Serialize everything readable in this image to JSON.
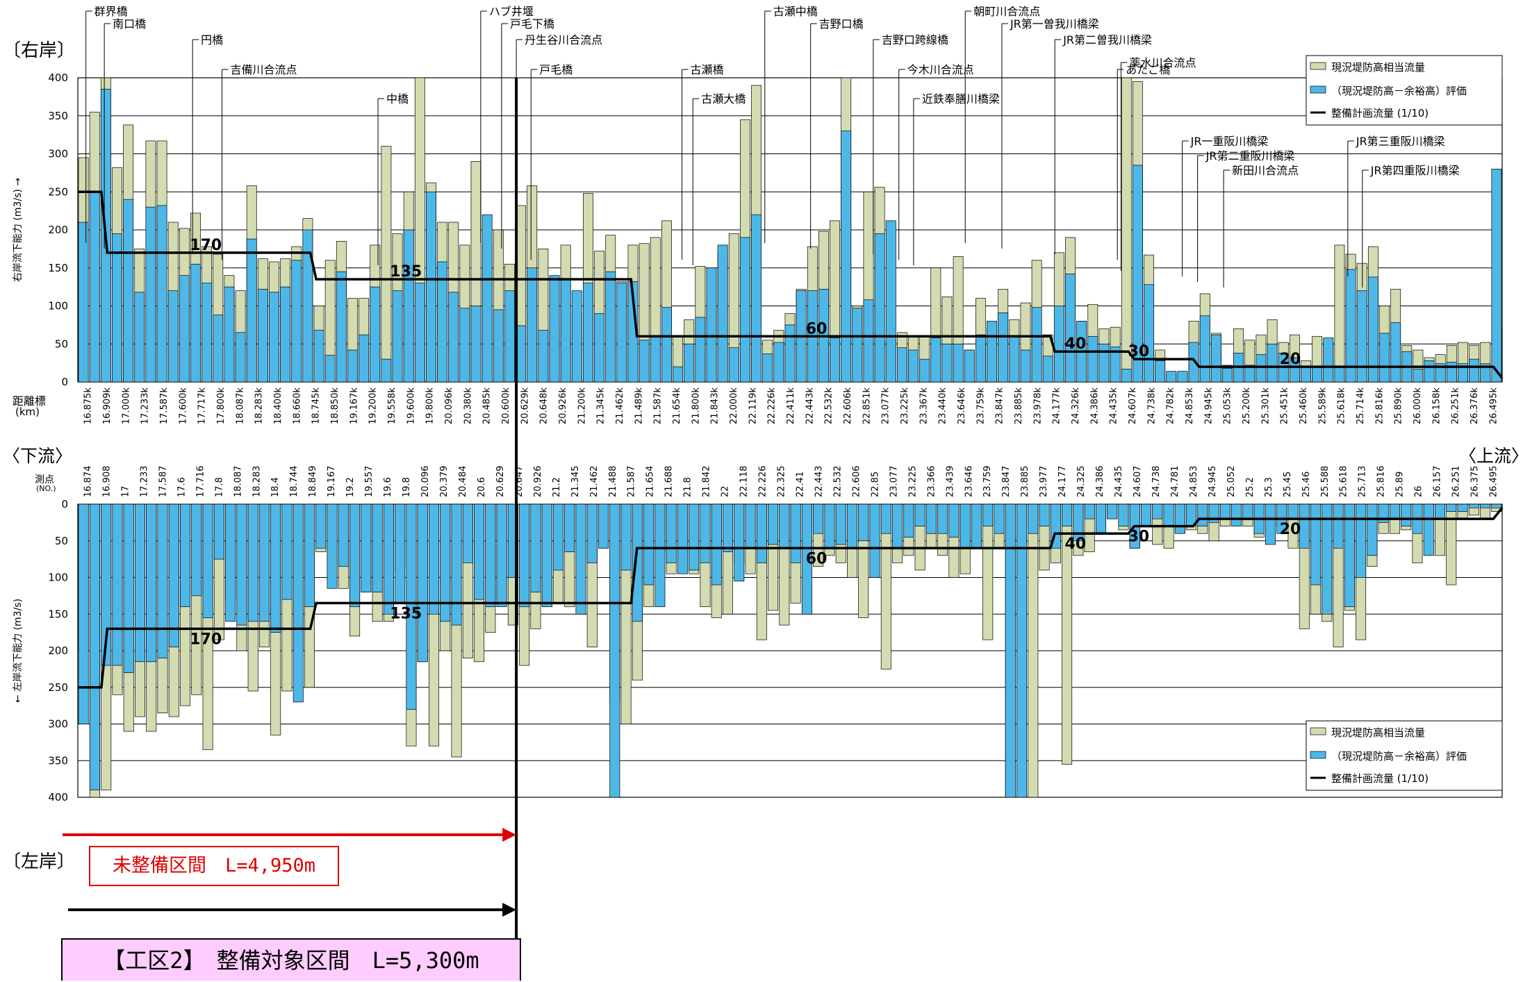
{
  "labels": {
    "right_bank": "〔右岸〕",
    "left_bank": "〔左岸〕",
    "downstream": "〈下流〉",
    "upstream": "〈上流〉",
    "y_label_top": "右岸流下能力 (m3/s) →",
    "y_label_bottom": "← 左岸流下能力 (m3/s)",
    "distance_label": "距離標",
    "distance_unit": "(km)",
    "station_label": "測点",
    "station_unit": "(NO.)",
    "unimproved_section": "未整備区間　L=4,950m",
    "work_section": "【工区2】　整備対象区間　L=5,300m"
  },
  "legend": {
    "item1": "現況堤防高相当流量",
    "item2": "（現況堤防高－余裕高）評価",
    "item3": "整備計画流量 (1/10)"
  },
  "colors": {
    "levee_height_flow": "#d3dcb0",
    "freeboard_eval": "#4db8e8",
    "plan_flow": "#000000",
    "arrow_red": "#e00000",
    "work_box_fill": "#ffccff"
  },
  "landmarks": [
    {
      "name": "群界橋",
      "x": 16.875,
      "tier": 0
    },
    {
      "name": "南口橋",
      "x": 17.0,
      "tier": 1
    },
    {
      "name": "円橋",
      "x": 17.6,
      "tier": 2
    },
    {
      "name": "吉備川合流点",
      "x": 17.8,
      "tier": 3
    },
    {
      "name": "中橋",
      "x": 18.86,
      "tier": 4
    },
    {
      "name": "ハブ井堰",
      "x": 19.558,
      "tier": 0
    },
    {
      "name": "戸毛下橋",
      "x": 19.7,
      "tier": 1
    },
    {
      "name": "丹生谷川合流点",
      "x": 19.8,
      "tier": 2
    },
    {
      "name": "戸毛橋",
      "x": 19.9,
      "tier": 3
    },
    {
      "name": "古瀬橋",
      "x": 20.926,
      "tier": 3
    },
    {
      "name": "古瀬大橋",
      "x": 21.0,
      "tier": 4
    },
    {
      "name": "古瀬中橋",
      "x": 21.489,
      "tier": 0
    },
    {
      "name": "吉野口橋",
      "x": 21.8,
      "tier": 1
    },
    {
      "name": "吉野口跨線橋",
      "x": 22.226,
      "tier": 2
    },
    {
      "name": "今木川合流点",
      "x": 22.4,
      "tier": 3
    },
    {
      "name": "近鉄奉膳川橋梁",
      "x": 22.5,
      "tier": 4
    },
    {
      "name": "朝町川合流点",
      "x": 22.851,
      "tier": 0
    },
    {
      "name": "JR第一曽我川橋梁",
      "x": 23.1,
      "tier": 1
    },
    {
      "name": "JR第二曽我川橋梁",
      "x": 23.46,
      "tier": 2
    },
    {
      "name": "あたご橋",
      "x": 23.885,
      "tier": 3
    },
    {
      "name": "薬水川合流点",
      "x": 23.91,
      "tier": 5
    },
    {
      "name": "JR一重阪川橋梁",
      "x": 24.326,
      "tier": 6
    },
    {
      "name": "JR第二重阪川橋梁",
      "x": 24.43,
      "tier": 7
    },
    {
      "name": "新田川合流点",
      "x": 24.607,
      "tier": 8
    },
    {
      "name": "JR第三重阪川橋梁",
      "x": 25.451,
      "tier": 6
    },
    {
      "name": "JR第四重阪川橋梁",
      "x": 25.55,
      "tier": 8
    }
  ],
  "flow_labels": [
    "170",
    "135",
    "60",
    "40",
    "30",
    "20"
  ],
  "chart_data": {
    "type": "bar",
    "xlim": [
      16.82,
      26.5
    ],
    "ylim_right": [
      0,
      400
    ],
    "ylim_left": [
      0,
      400
    ],
    "yticks": [
      0,
      50,
      100,
      150,
      200,
      250,
      300,
      350,
      400
    ],
    "distance_ticks": [
      "16.875k",
      "16.909k",
      "17.000k",
      "17.233k",
      "17.587k",
      "17.600k",
      "17.717k",
      "17.800k",
      "18.087k",
      "18.283k",
      "18.400k",
      "18.660k",
      "18.745k",
      "18.850k",
      "19.167k",
      "19.200k",
      "19.558k",
      "19.600k",
      "19.800k",
      "20.096k",
      "20.380k",
      "20.485k",
      "20.600k",
      "20.629k",
      "20.648k",
      "20.926k",
      "21.200k",
      "21.345k",
      "21.462k",
      "21.489k",
      "21.587k",
      "21.654k",
      "21.800k",
      "21.843k",
      "22.000k",
      "22.119k",
      "22.226k",
      "22.411k",
      "22.443k",
      "22.532k",
      "22.606k",
      "22.851k",
      "23.077k",
      "23.225k",
      "23.367k",
      "23.440k",
      "23.646k",
      "23.759k",
      "23.847k",
      "23.885k",
      "23.978k",
      "24.177k",
      "24.326k",
      "24.386k",
      "24.435k",
      "24.607k",
      "24.738k",
      "24.782k",
      "24.853k",
      "24.945k",
      "25.053k",
      "25.200k",
      "25.301k",
      "25.451k",
      "25.460k",
      "25.589k",
      "25.618k",
      "25.714k",
      "25.816k",
      "25.890k",
      "26.000k",
      "26.158k",
      "26.251k",
      "26.376k",
      "26.495k"
    ],
    "station_ticks": [
      "16.874",
      "16.908",
      "17",
      "17.233",
      "17.587",
      "17.6",
      "17.716",
      "17.8",
      "18.087",
      "18.283",
      "18.4",
      "18.744",
      "18.849",
      "19.167",
      "19.2",
      "19.557",
      "19.6",
      "19.8",
      "20.096",
      "20.379",
      "20.484",
      "20.6",
      "20.629",
      "20.647",
      "20.926",
      "21.2",
      "21.345",
      "21.462",
      "21.488",
      "21.587",
      "21.654",
      "21.688",
      "21.8",
      "21.842",
      "22",
      "22.118",
      "22.226",
      "22.325",
      "22.41",
      "22.443",
      "22.532",
      "22.606",
      "22.85",
      "23.077",
      "23.225",
      "23.366",
      "23.439",
      "23.646",
      "23.759",
      "23.847",
      "23.885",
      "23.977",
      "24.177",
      "24.325",
      "24.386",
      "24.435",
      "24.607",
      "24.738",
      "24.781",
      "24.853",
      "24.945",
      "25.052",
      "25.2",
      "25.3",
      "25.45",
      "25.46",
      "25.588",
      "25.618",
      "25.713",
      "25.816",
      "25.89",
      "26",
      "26.157",
      "26.251",
      "26.375",
      "26.495"
    ],
    "right_bank": {
      "levee_height_flow": [
        295,
        355,
        400,
        282,
        338,
        175,
        317,
        317,
        210,
        202,
        222,
        178,
        168,
        140,
        120,
        258,
        162,
        158,
        162,
        178,
        215,
        100,
        160,
        185,
        110,
        110,
        180,
        310,
        195,
        250,
        400,
        262,
        210,
        210,
        180,
        290,
        180,
        200,
        155,
        232,
        258,
        175,
        75,
        180,
        92,
        248,
        172,
        193,
        132,
        180,
        182,
        190,
        212,
        60,
        82,
        152,
        106,
        170,
        195,
        345,
        390,
        55,
        68,
        90,
        122,
        178,
        198,
        212,
        400,
        100,
        250,
        256,
        55,
        65,
        60,
        60,
        150,
        112,
        165,
        42,
        110,
        70,
        122,
        82,
        104,
        160,
        62,
        170,
        190,
        80,
        102,
        70,
        72,
        400,
        395,
        167,
        42,
        12,
        12,
        80,
        116,
        64,
        22,
        70,
        55,
        62,
        82,
        52,
        62,
        28,
        60,
        52,
        180,
        168,
        156,
        178,
        100,
        122,
        48,
        42,
        32,
        36,
        48,
        52,
        48,
        52,
        72
      ],
      "freeboard_eval": [
        210,
        250,
        385,
        195,
        240,
        118,
        230,
        232,
        120,
        140,
        155,
        130,
        88,
        125,
        65,
        188,
        122,
        118,
        125,
        160,
        200,
        68,
        35,
        145,
        42,
        62,
        125,
        30,
        120,
        200,
        130,
        250,
        158,
        118,
        97,
        100,
        220,
        95,
        120,
        74,
        150,
        68,
        140,
        135,
        120,
        130,
        90,
        145,
        130,
        132,
        55,
        60,
        98,
        20,
        50,
        85,
        150,
        180,
        45,
        190,
        220,
        37,
        52,
        75,
        120,
        120,
        122,
        58,
        330,
        97,
        108,
        195,
        212,
        45,
        42,
        30,
        58,
        50,
        50,
        42,
        62,
        80,
        91,
        60,
        42,
        98,
        34,
        100,
        142,
        80,
        60,
        50,
        46,
        17,
        285,
        128,
        28,
        14,
        14,
        52,
        87,
        62,
        18,
        38,
        22,
        36,
        50,
        38,
        32,
        20,
        20,
        58,
        20,
        148,
        120,
        138,
        64,
        78,
        40,
        17,
        28,
        24,
        26,
        24,
        30,
        24,
        280,
        16,
        18,
        14,
        58,
        58
      ]
    },
    "left_bank": {
      "levee_height_flow": [
        200,
        400,
        390,
        260,
        310,
        290,
        310,
        285,
        290,
        275,
        260,
        335,
        185,
        130,
        200,
        255,
        195,
        315,
        255,
        200,
        250,
        65,
        105,
        115,
        180,
        120,
        160,
        160,
        90,
        330,
        215,
        330,
        200,
        345,
        210,
        215,
        175,
        130,
        165,
        220,
        170,
        140,
        135,
        140,
        100,
        195,
        60,
        270,
        300,
        240,
        140,
        65,
        95,
        55,
        95,
        140,
        155,
        150,
        80,
        95,
        185,
        145,
        165,
        135,
        60,
        85,
        70,
        80,
        100,
        155,
        70,
        225,
        80,
        70,
        90,
        60,
        70,
        100,
        95,
        60,
        185,
        60,
        400,
        100,
        400,
        90,
        80,
        355,
        70,
        65,
        30,
        20,
        35,
        60,
        30,
        55,
        60,
        40,
        35,
        40,
        50,
        30,
        20,
        30,
        45,
        20,
        30,
        60,
        170,
        150,
        160,
        195,
        145,
        185,
        85,
        40,
        40,
        35,
        80,
        20,
        70,
        110,
        20,
        15,
        20,
        10
      ],
      "freeboard_eval": [
        300,
        390,
        220,
        220,
        230,
        215,
        215,
        210,
        195,
        140,
        125,
        155,
        75,
        160,
        165,
        160,
        160,
        175,
        130,
        270,
        140,
        60,
        115,
        85,
        140,
        120,
        120,
        150,
        135,
        280,
        215,
        150,
        160,
        165,
        80,
        130,
        140,
        140,
        100,
        140,
        120,
        140,
        90,
        65,
        150,
        80,
        60,
        400,
        90,
        160,
        110,
        140,
        80,
        95,
        90,
        80,
        110,
        65,
        105,
        60,
        80,
        55,
        60,
        80,
        150,
        40,
        60,
        55,
        60,
        50,
        100,
        40,
        60,
        45,
        30,
        40,
        40,
        45,
        60,
        60,
        30,
        40,
        400,
        400,
        40,
        30,
        60,
        30,
        50,
        20,
        40,
        20,
        30,
        60,
        30,
        20,
        30,
        40,
        30,
        30,
        25,
        20,
        30,
        20,
        40,
        55,
        40,
        20,
        60,
        110,
        150,
        60,
        140,
        100,
        70,
        25,
        20,
        30,
        40,
        70,
        20,
        10,
        10,
        5,
        5,
        5
      ]
    },
    "plan_flow": {
      "points": [
        [
          16.82,
          250
        ],
        [
          16.98,
          250
        ],
        [
          17.02,
          170
        ],
        [
          18.4,
          170
        ],
        [
          18.44,
          135
        ],
        [
          20.58,
          135
        ],
        [
          20.62,
          60
        ],
        [
          23.43,
          60
        ],
        [
          23.46,
          40
        ],
        [
          23.96,
          40
        ],
        [
          24.0,
          30
        ],
        [
          24.4,
          30
        ],
        [
          24.44,
          20
        ],
        [
          26.44,
          20
        ],
        [
          26.5,
          5
        ]
      ],
      "labels": [
        {
          "text": "170",
          "x": 17.69,
          "y_right": 170,
          "y_left": 170
        },
        {
          "text": "135",
          "x": 19.05,
          "y_right": 135,
          "y_left": 135
        },
        {
          "text": "60",
          "x": 21.84,
          "y_right": 60,
          "y_left": 60
        },
        {
          "text": "40",
          "x": 23.6,
          "y_right": 40,
          "y_left": 40
        },
        {
          "text": "30",
          "x": 24.03,
          "y_right": 30,
          "y_left": 30
        },
        {
          "text": "20",
          "x": 25.06,
          "y_right": 20,
          "y_left": 20
        }
      ]
    },
    "boundary_x": 19.8
  }
}
